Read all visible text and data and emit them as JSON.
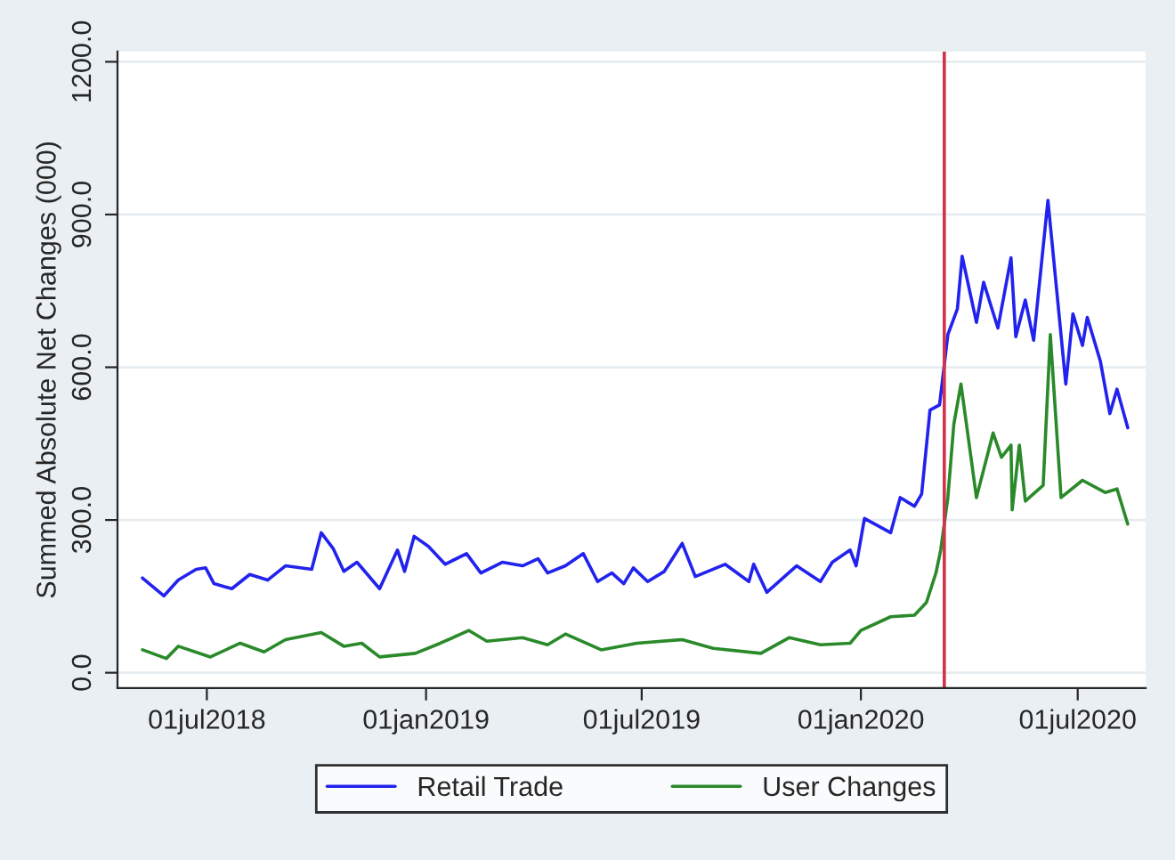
{
  "chart_data": {
    "type": "line",
    "ylabel": "Summed Absolute Net Changes (000)",
    "xlim": [
      "2018-04-17",
      "2020-08-27"
    ],
    "xticks": [
      {
        "value": "2018-07-01",
        "label": "01jul2018"
      },
      {
        "value": "2019-01-01",
        "label": "01jan2019"
      },
      {
        "value": "2019-07-01",
        "label": "01jul2019"
      },
      {
        "value": "2020-01-01",
        "label": "01jan2020"
      },
      {
        "value": "2020-07-01",
        "label": "01jul2020"
      }
    ],
    "ylim": [
      -30,
      1220
    ],
    "yticks": [
      {
        "value": 0,
        "label": "0.0"
      },
      {
        "value": 300,
        "label": "300.0"
      },
      {
        "value": 600,
        "label": "600.0"
      },
      {
        "value": 900,
        "label": "900.0"
      },
      {
        "value": 1200,
        "label": "1200.0"
      }
    ],
    "grid": "y",
    "legend": "bottom",
    "ref_lines": [
      {
        "axis": "x",
        "value": "2020-03-11",
        "color": "#d2334a"
      }
    ],
    "series": [
      {
        "name": "Retail Trade",
        "color": "#2222ee",
        "x": [
          "2018-05-08",
          "2018-05-26",
          "2018-06-07",
          "2018-06-22",
          "2018-06-30",
          "2018-07-07",
          "2018-07-22",
          "2018-08-06",
          "2018-08-21",
          "2018-09-05",
          "2018-09-27",
          "2018-10-05",
          "2018-10-15",
          "2018-10-24",
          "2018-11-04",
          "2018-11-23",
          "2018-12-08",
          "2018-12-14",
          "2018-12-22",
          "2019-01-03",
          "2019-01-17",
          "2019-02-04",
          "2019-02-16",
          "2019-03-06",
          "2019-03-23",
          "2019-04-05",
          "2019-04-13",
          "2019-04-28",
          "2019-05-13",
          "2019-05-25",
          "2019-06-06",
          "2019-06-16",
          "2019-06-24",
          "2019-07-06",
          "2019-07-20",
          "2019-08-04",
          "2019-08-15",
          "2019-09-09",
          "2019-09-29",
          "2019-10-03",
          "2019-10-14",
          "2019-11-08",
          "2019-11-28",
          "2019-12-08",
          "2019-12-23",
          "2019-12-28",
          "2020-01-04",
          "2020-01-26",
          "2020-02-03",
          "2020-02-15",
          "2020-02-21",
          "2020-02-28",
          "2020-03-07",
          "2020-03-14",
          "2020-03-22",
          "2020-03-26",
          "2020-04-07",
          "2020-04-13",
          "2020-04-25",
          "2020-05-06",
          "2020-05-10",
          "2020-05-18",
          "2020-05-25",
          "2020-06-06",
          "2020-06-21",
          "2020-06-27",
          "2020-07-05",
          "2020-07-09",
          "2020-07-20",
          "2020-07-28",
          "2020-08-03",
          "2020-08-12"
        ],
        "values": [
          186,
          151,
          182,
          203,
          206,
          175,
          165,
          193,
          182,
          210,
          203,
          275,
          244,
          199,
          217,
          165,
          241,
          199,
          268,
          248,
          213,
          234,
          196,
          217,
          210,
          224,
          196,
          210,
          234,
          179,
          196,
          175,
          206,
          179,
          199,
          254,
          189,
          213,
          179,
          213,
          158,
          210,
          179,
          217,
          241,
          210,
          303,
          275,
          344,
          327,
          351,
          516,
          526,
          664,
          715,
          818,
          688,
          767,
          677,
          815,
          660,
          732,
          653,
          928,
          567,
          705,
          643,
          698,
          612,
          509,
          557,
          481
        ]
      },
      {
        "name": "User Changes",
        "color": "#2a8a2a",
        "x": [
          "2018-05-08",
          "2018-05-28",
          "2018-06-07",
          "2018-07-04",
          "2018-07-29",
          "2018-08-18",
          "2018-09-05",
          "2018-10-05",
          "2018-10-24",
          "2018-11-08",
          "2018-11-23",
          "2018-12-23",
          "2019-01-13",
          "2019-02-06",
          "2019-02-21",
          "2019-03-23",
          "2019-04-13",
          "2019-04-28",
          "2019-05-28",
          "2019-06-27",
          "2019-08-04",
          "2019-08-30",
          "2019-10-09",
          "2019-11-02",
          "2019-11-28",
          "2019-12-23",
          "2020-01-01",
          "2020-01-26",
          "2020-02-15",
          "2020-02-25",
          "2020-03-04",
          "2020-03-08",
          "2020-03-14",
          "2020-03-19",
          "2020-03-25",
          "2020-04-07",
          "2020-04-21",
          "2020-04-28",
          "2020-05-06",
          "2020-05-07",
          "2020-05-13",
          "2020-05-18",
          "2020-06-02",
          "2020-06-08",
          "2020-06-17",
          "2020-07-05",
          "2020-07-24",
          "2020-08-03",
          "2020-08-12"
        ],
        "values": [
          45,
          28,
          52,
          31,
          58,
          41,
          65,
          79,
          52,
          58,
          31,
          38,
          58,
          83,
          62,
          69,
          55,
          76,
          45,
          58,
          65,
          48,
          38,
          69,
          55,
          58,
          83,
          110,
          113,
          138,
          196,
          241,
          344,
          488,
          567,
          344,
          471,
          423,
          447,
          320,
          447,
          337,
          368,
          664,
          344,
          378,
          354,
          361,
          292
        ]
      }
    ]
  }
}
